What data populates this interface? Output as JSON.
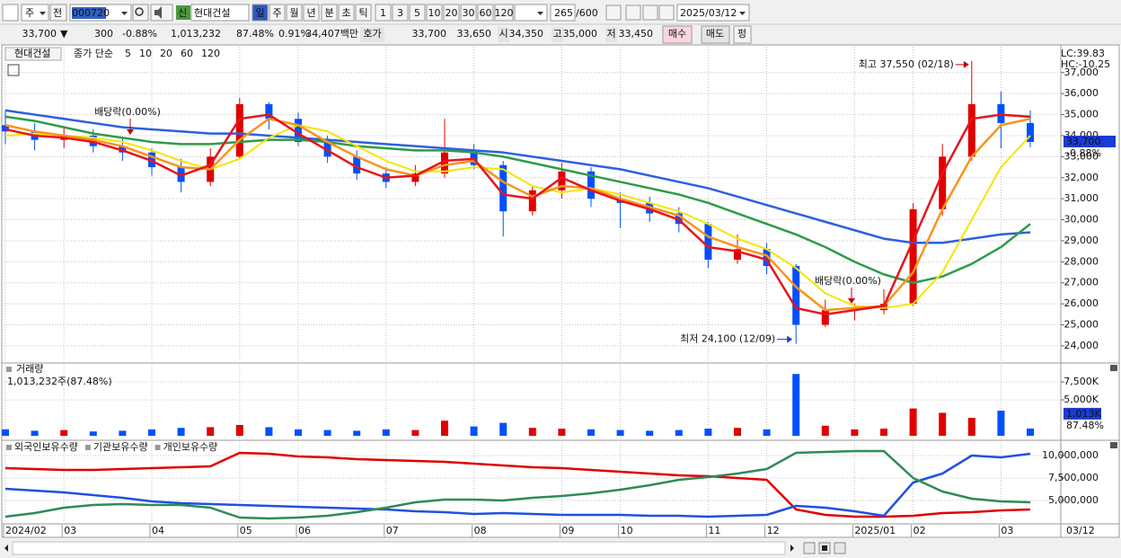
{
  "toolbar": {
    "period": "주",
    "prev": "전",
    "code": "000720",
    "new_badge": "신",
    "name": "현대건설",
    "intervals": [
      "일",
      "주",
      "월",
      "년",
      "분",
      "초",
      "틱"
    ],
    "units": [
      "1",
      "3",
      "5",
      "10",
      "20",
      "30",
      "60",
      "120"
    ],
    "count": "265",
    "max": "/600",
    "date": "2025/03/12"
  },
  "quote": {
    "price": "33,700",
    "arrow": "▼",
    "change": "300",
    "rate": "-0.88%",
    "volume": "1,013,232",
    "volume_rate": "87.48%",
    "turnover": "0.91%",
    "amount": "34,407백만",
    "bid_label": "호가",
    "ask": "33,700",
    "bid": "33,650",
    "open_label": "시",
    "open": "34,350",
    "high_label": "고",
    "high": "35,000",
    "low_label": "저",
    "low": "33,450",
    "buy": "매수",
    "sell": "매도",
    "avg": "펑"
  },
  "chart_data": [
    {
      "type": "candlestick",
      "title": "현대건설",
      "legend_title": "종가 단순",
      "categories": [
        "2024/02",
        null,
        "03",
        null,
        null,
        "04",
        null,
        null,
        "05",
        null,
        "06",
        null,
        null,
        "07",
        null,
        null,
        "08",
        null,
        null,
        "09",
        null,
        "10",
        null,
        null,
        "11",
        null,
        "12",
        null,
        null,
        "2025/01",
        null,
        "02",
        null,
        null,
        "03",
        null
      ],
      "last_date": "03/12",
      "open": [
        34500,
        34200,
        33800,
        34000,
        33500,
        33200,
        32500,
        31800,
        33000,
        35500,
        34800,
        33700,
        33000,
        32200,
        31800,
        32200,
        33200,
        32600,
        30400,
        31400,
        32300,
        31000,
        30800,
        30300,
        29800,
        28100,
        28600,
        27800,
        25000,
        25700,
        25700,
        26000,
        30500,
        33000,
        35500,
        34600
      ],
      "high": [
        35200,
        34600,
        34400,
        34300,
        33900,
        33400,
        32900,
        33400,
        35800,
        35600,
        35100,
        34000,
        33300,
        32500,
        32600,
        34800,
        33600,
        32800,
        31600,
        32700,
        32500,
        31300,
        31100,
        30600,
        29900,
        29300,
        28900,
        27900,
        26200,
        26000,
        26700,
        30800,
        33600,
        37550,
        36100,
        35200
      ],
      "low": [
        33600,
        33300,
        33400,
        33200,
        32800,
        32100,
        31300,
        31600,
        32900,
        34300,
        33500,
        32700,
        31900,
        31500,
        31600,
        32000,
        32400,
        29200,
        30200,
        31000,
        30600,
        29600,
        29900,
        29400,
        27700,
        27900,
        27400,
        24100,
        24900,
        25200,
        25500,
        25900,
        30200,
        32800,
        33400,
        33450
      ],
      "close": [
        34200,
        33800,
        34000,
        33500,
        33200,
        32500,
        31800,
        33000,
        35500,
        34800,
        33700,
        33000,
        32200,
        31800,
        32200,
        33200,
        32600,
        30400,
        31400,
        32300,
        31000,
        30800,
        30300,
        29800,
        28100,
        28600,
        27800,
        25000,
        25700,
        25700,
        26000,
        30500,
        33000,
        35500,
        34600,
        33700
      ],
      "up_color": "#e00000",
      "down_color": "#0050ff",
      "series": [
        {
          "name": "5",
          "color": "#e8141c",
          "values": [
            34300,
            34000,
            33900,
            33700,
            33300,
            32800,
            32100,
            32600,
            34800,
            35000,
            34100,
            33300,
            32500,
            32000,
            32100,
            32800,
            32900,
            31200,
            31000,
            32000,
            31400,
            30900,
            30500,
            30000,
            28700,
            28500,
            28100,
            25800,
            25500,
            25700,
            25900,
            29000,
            32200,
            34800,
            35000,
            34900
          ]
        },
        {
          "name": "10",
          "color": "#f7941d",
          "values": [
            34500,
            34200,
            34000,
            33800,
            33500,
            33000,
            32500,
            32400,
            33800,
            34800,
            34500,
            33700,
            33000,
            32400,
            32100,
            32600,
            32800,
            31800,
            31100,
            31600,
            31500,
            31000,
            30600,
            30200,
            29200,
            28700,
            28300,
            26800,
            25700,
            25800,
            25900,
            27500,
            30500,
            33000,
            34500,
            34800
          ]
        },
        {
          "name": "20",
          "color": "#f2e600",
          "values": [
            34000,
            34100,
            34000,
            33900,
            33700,
            33300,
            32800,
            32400,
            32900,
            33900,
            34500,
            34200,
            33500,
            32800,
            32300,
            32300,
            32500,
            32400,
            31600,
            31300,
            31500,
            31200,
            30800,
            30400,
            29800,
            29100,
            28600,
            27700,
            26500,
            25900,
            25800,
            26000,
            27500,
            30000,
            32500,
            34000
          ]
        },
        {
          "name": "60",
          "color": "#2e9b48",
          "values": [
            34900,
            34700,
            34400,
            34100,
            33900,
            33700,
            33600,
            33600,
            33700,
            33800,
            33800,
            33700,
            33500,
            33400,
            33300,
            33300,
            33200,
            33000,
            32700,
            32400,
            32100,
            31800,
            31500,
            31200,
            30800,
            30300,
            29800,
            29300,
            28700,
            28000,
            27400,
            27000,
            27300,
            27900,
            28700,
            29800
          ]
        },
        {
          "name": "120",
          "color": "#2d5fe0",
          "values": [
            35200,
            35000,
            34800,
            34600,
            34400,
            34300,
            34200,
            34100,
            34100,
            34000,
            33900,
            33800,
            33700,
            33600,
            33500,
            33400,
            33300,
            33200,
            33000,
            32800,
            32600,
            32400,
            32100,
            31800,
            31500,
            31100,
            30700,
            30300,
            29900,
            29500,
            29100,
            28900,
            28900,
            29100,
            29300,
            29400
          ]
        }
      ],
      "ylim": [
        23270,
        38230
      ],
      "yticks": [
        {
          "value": 24000,
          "label": "24,000"
        },
        {
          "value": 25000,
          "label": "25,000"
        },
        {
          "value": 26000,
          "label": "26,000"
        },
        {
          "value": 27000,
          "label": "27,000"
        },
        {
          "value": 28000,
          "label": "28,000"
        },
        {
          "value": 29000,
          "label": "29,000"
        },
        {
          "value": 30000,
          "label": "30,000"
        },
        {
          "value": 31000,
          "label": "31,000"
        },
        {
          "value": 32000,
          "label": "32,000"
        },
        {
          "value": 33000,
          "label": "33,000"
        },
        {
          "value": 34000,
          "label": "34,000"
        },
        {
          "value": 35000,
          "label": "35,000"
        },
        {
          "value": 36000,
          "label": "36,000"
        },
        {
          "value": 37000,
          "label": "37,000"
        }
      ],
      "grid": true,
      "corner_labels": [
        "LC:39.83",
        "HC:-10.25"
      ],
      "last_label": "33,700",
      "last_change": "-0.88%",
      "high_label": "최고 37,550 (02/18)",
      "low_label": "최저 24,100 (12/09)",
      "ex_dividend": "배당락(0.00%)"
    },
    {
      "type": "bar",
      "title": "거래량",
      "subtitle": "1,013,232주(87.48%)",
      "values": [
        900000,
        700000,
        800000,
        600000,
        700000,
        900000,
        1100000,
        1200000,
        1500000,
        1200000,
        900000,
        800000,
        700000,
        900000,
        800000,
        2100000,
        1300000,
        1800000,
        1100000,
        1000000,
        900000,
        800000,
        700000,
        800000,
        1000000,
        1100000,
        900000,
        8600000,
        1400000,
        900000,
        1000000,
        3800000,
        3200000,
        2500000,
        3500000,
        1013232
      ],
      "ylim": [
        0,
        10000000
      ],
      "yticks": [
        {
          "value": 7500000,
          "label": "7,500K"
        },
        {
          "value": 5000000,
          "label": "5,000K"
        }
      ],
      "last_label": "1,013K",
      "last_rate": "87.48%"
    },
    {
      "type": "line",
      "series": [
        {
          "name": "외국인보유수량",
          "color": "#e00000",
          "values": [
            8600000,
            8500000,
            8400000,
            8400000,
            8500000,
            8600000,
            8700000,
            8800000,
            10300000,
            10200000,
            9900000,
            9800000,
            9600000,
            9500000,
            9400000,
            9300000,
            9100000,
            8900000,
            8700000,
            8600000,
            8400000,
            8200000,
            8000000,
            7800000,
            7700000,
            7500000,
            7300000,
            4000000,
            3400000,
            3200000,
            3200000,
            3300000,
            3600000,
            3700000,
            3900000,
            4000000
          ]
        },
        {
          "name": "기관보유수량",
          "color": "#2050e0",
          "values": [
            6300000,
            6100000,
            5900000,
            5600000,
            5300000,
            4900000,
            4700000,
            4600000,
            4500000,
            4400000,
            4300000,
            4200000,
            4100000,
            4000000,
            3800000,
            3700000,
            3500000,
            3600000,
            3500000,
            3400000,
            3400000,
            3400000,
            3300000,
            3300000,
            3200000,
            3300000,
            3400000,
            4400000,
            4200000,
            3800000,
            3300000,
            7000000,
            8000000,
            10000000,
            9800000,
            10200000
          ]
        },
        {
          "name": "개인보유수량",
          "color": "#2e8b57",
          "values": [
            3200000,
            3600000,
            4200000,
            4500000,
            4600000,
            4500000,
            4500000,
            4200000,
            3100000,
            3000000,
            3100000,
            3300000,
            3700000,
            4200000,
            4800000,
            5100000,
            5100000,
            5000000,
            5300000,
            5500000,
            5800000,
            6200000,
            6700000,
            7300000,
            7600000,
            8000000,
            8500000,
            10300000,
            10400000,
            10500000,
            10500000,
            7500000,
            6000000,
            5200000,
            4900000,
            4800000
          ]
        }
      ],
      "ylim": [
        2500000,
        11500000
      ],
      "yticks": [
        {
          "value": 10000000,
          "label": "10,000,000"
        },
        {
          "value": 7500000,
          "label": "7,500,000"
        },
        {
          "value": 5000000,
          "label": "5,000,000"
        }
      ]
    }
  ]
}
